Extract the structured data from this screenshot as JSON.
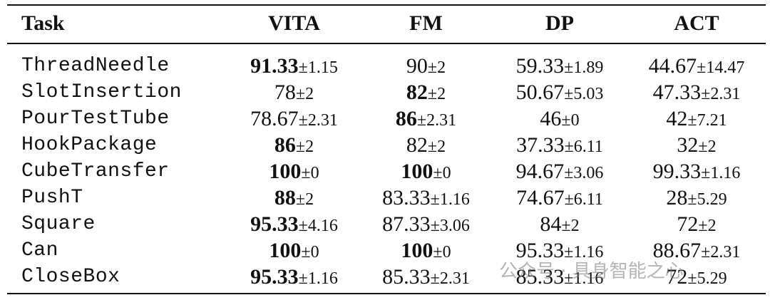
{
  "table": {
    "header": [
      "Task",
      "VITA",
      "FM",
      "DP",
      "ACT"
    ],
    "rows": [
      {
        "task": "ThreadNeedle",
        "cells": [
          {
            "value": "91.33",
            "error": "±1.15",
            "best": true
          },
          {
            "value": "90",
            "error": "±2",
            "best": false
          },
          {
            "value": "59.33",
            "error": "±1.89",
            "best": false
          },
          {
            "value": "44.67",
            "error": "±14.47",
            "best": false
          }
        ]
      },
      {
        "task": "SlotInsertion",
        "cells": [
          {
            "value": "78",
            "error": "±2",
            "best": false
          },
          {
            "value": "82",
            "error": "±2",
            "best": true
          },
          {
            "value": "50.67",
            "error": "±5.03",
            "best": false
          },
          {
            "value": "47.33",
            "error": "±2.31",
            "best": false
          }
        ]
      },
      {
        "task": "PourTestTube",
        "cells": [
          {
            "value": "78.67",
            "error": "±2.31",
            "best": false
          },
          {
            "value": "86",
            "error": "±2.31",
            "best": true
          },
          {
            "value": "46",
            "error": "±0",
            "best": false
          },
          {
            "value": "42",
            "error": "±7.21",
            "best": false
          }
        ]
      },
      {
        "task": "HookPackage",
        "cells": [
          {
            "value": "86",
            "error": "±2",
            "best": true
          },
          {
            "value": "82",
            "error": "±2",
            "best": false
          },
          {
            "value": "37.33",
            "error": "±6.11",
            "best": false
          },
          {
            "value": "32",
            "error": "±2",
            "best": false
          }
        ]
      },
      {
        "task": "CubeTransfer",
        "cells": [
          {
            "value": "100",
            "error": "±0",
            "best": true
          },
          {
            "value": "100",
            "error": "±0",
            "best": true
          },
          {
            "value": "94.67",
            "error": "±3.06",
            "best": false
          },
          {
            "value": "99.33",
            "error": "±1.16",
            "best": false
          }
        ]
      },
      {
        "task": "PushT",
        "cells": [
          {
            "value": "88",
            "error": "±2",
            "best": true
          },
          {
            "value": "83.33",
            "error": "±1.16",
            "best": false
          },
          {
            "value": "74.67",
            "error": "±6.11",
            "best": false
          },
          {
            "value": "28",
            "error": "±5.29",
            "best": false
          }
        ]
      },
      {
        "task": "Square",
        "cells": [
          {
            "value": "95.33",
            "error": "±4.16",
            "best": true
          },
          {
            "value": "87.33",
            "error": "±3.06",
            "best": false
          },
          {
            "value": "84",
            "error": "±2",
            "best": false
          },
          {
            "value": "72",
            "error": "±2",
            "best": false
          }
        ]
      },
      {
        "task": "Can",
        "cells": [
          {
            "value": "100",
            "error": "±0",
            "best": true
          },
          {
            "value": "100",
            "error": "±0",
            "best": true
          },
          {
            "value": "95.33",
            "error": "±1.16",
            "best": false
          },
          {
            "value": "88.67",
            "error": "±2.31",
            "best": false
          }
        ]
      },
      {
        "task": "CloseBox",
        "cells": [
          {
            "value": "95.33",
            "error": "±1.16",
            "best": true
          },
          {
            "value": "85.33",
            "error": "±2.31",
            "best": false
          },
          {
            "value": "85.33",
            "error": "±1.16",
            "best": false
          },
          {
            "value": "72",
            "error": "±5.29",
            "best": false
          }
        ]
      }
    ]
  },
  "watermark": "公众号 · 具身智能之心"
}
